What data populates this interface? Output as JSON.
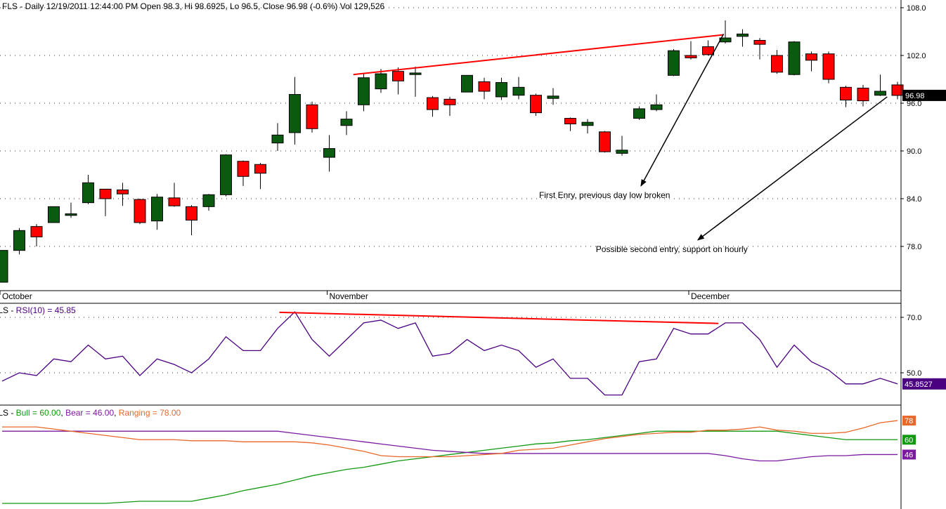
{
  "header": {
    "title": "FLS - Daily 12/19/2011 12:44:00 PM Open 98.3, Hi 98.6925, Lo 96.5, Close 96.98 (-0.6%) Vol 129,526"
  },
  "colors": {
    "up": "#0a5a10",
    "down": "#ff0000",
    "trendline": "#ff0000",
    "rsi": "#4b0082",
    "bull": "#119911",
    "bear": "#7a1aa0",
    "ranging": "#e8682a"
  },
  "chart_data": [
    {
      "type": "candlestick",
      "name": "price",
      "ylim": [
        72,
        109
      ],
      "y_ticks": [
        108.0,
        102.0,
        96.0,
        90.0,
        84.0,
        78.0
      ],
      "y_tick_labels": [
        "108.0",
        "102.0",
        "96.0",
        "90.0",
        "84.0",
        "78.0"
      ],
      "month_labels": [
        {
          "label": "October",
          "index": 0
        },
        {
          "label": "November",
          "index": 19
        },
        {
          "label": "December",
          "index": 40
        }
      ],
      "last_value_label": "96.98",
      "candles": [
        {
          "o": 73.5,
          "h": 77.5,
          "l": 73.5,
          "c": 77.5
        },
        {
          "o": 77.5,
          "h": 80.3,
          "l": 77.0,
          "c": 80.0
        },
        {
          "o": 80.5,
          "h": 80.8,
          "l": 78.0,
          "c": 79.2
        },
        {
          "o": 81.0,
          "h": 83.0,
          "l": 81.0,
          "c": 83.0
        },
        {
          "o": 81.9,
          "h": 83.5,
          "l": 81.6,
          "c": 82.1
        },
        {
          "o": 83.5,
          "h": 87.0,
          "l": 83.3,
          "c": 86.0
        },
        {
          "o": 85.2,
          "h": 85.2,
          "l": 81.8,
          "c": 84.0
        },
        {
          "o": 85.1,
          "h": 86.0,
          "l": 83.1,
          "c": 84.6
        },
        {
          "o": 83.9,
          "h": 84.0,
          "l": 80.8,
          "c": 81.0
        },
        {
          "o": 81.2,
          "h": 84.6,
          "l": 80.1,
          "c": 84.2
        },
        {
          "o": 84.1,
          "h": 86.0,
          "l": 83.0,
          "c": 83.1
        },
        {
          "o": 83.0,
          "h": 83.2,
          "l": 79.4,
          "c": 81.3
        },
        {
          "o": 83.0,
          "h": 84.6,
          "l": 82.5,
          "c": 84.5
        },
        {
          "o": 84.5,
          "h": 89.6,
          "l": 84.3,
          "c": 89.5
        },
        {
          "o": 88.7,
          "h": 88.8,
          "l": 85.6,
          "c": 86.8
        },
        {
          "o": 88.3,
          "h": 88.5,
          "l": 85.2,
          "c": 87.2
        },
        {
          "o": 91.0,
          "h": 93.5,
          "l": 90.0,
          "c": 92.0
        },
        {
          "o": 92.3,
          "h": 99.3,
          "l": 90.8,
          "c": 97.1
        },
        {
          "o": 95.8,
          "h": 96.2,
          "l": 92.3,
          "c": 92.8
        },
        {
          "o": 89.2,
          "h": 92.0,
          "l": 87.4,
          "c": 90.3
        },
        {
          "o": 93.2,
          "h": 95.0,
          "l": 92.0,
          "c": 94.0
        },
        {
          "o": 95.8,
          "h": 99.8,
          "l": 95.0,
          "c": 99.2
        },
        {
          "o": 97.8,
          "h": 100.3,
          "l": 97.3,
          "c": 99.7
        },
        {
          "o": 100.0,
          "h": 100.5,
          "l": 97.1,
          "c": 98.8
        },
        {
          "o": 99.6,
          "h": 100.6,
          "l": 96.8,
          "c": 99.8
        },
        {
          "o": 96.7,
          "h": 96.9,
          "l": 94.3,
          "c": 95.2
        },
        {
          "o": 96.5,
          "h": 96.8,
          "l": 94.4,
          "c": 95.8
        },
        {
          "o": 97.4,
          "h": 99.5,
          "l": 97.4,
          "c": 99.5
        },
        {
          "o": 98.7,
          "h": 99.2,
          "l": 96.5,
          "c": 97.5
        },
        {
          "o": 96.8,
          "h": 99.2,
          "l": 96.4,
          "c": 98.6
        },
        {
          "o": 97.0,
          "h": 99.3,
          "l": 96.5,
          "c": 98.0
        },
        {
          "o": 97.0,
          "h": 97.2,
          "l": 94.4,
          "c": 94.8
        },
        {
          "o": 96.6,
          "h": 97.9,
          "l": 95.8,
          "c": 96.9
        },
        {
          "o": 94.1,
          "h": 94.2,
          "l": 92.5,
          "c": 93.4
        },
        {
          "o": 93.2,
          "h": 94.0,
          "l": 92.2,
          "c": 93.6
        },
        {
          "o": 92.4,
          "h": 92.5,
          "l": 89.8,
          "c": 89.9
        },
        {
          "o": 89.7,
          "h": 91.9,
          "l": 89.4,
          "c": 90.1
        },
        {
          "o": 94.1,
          "h": 95.6,
          "l": 93.9,
          "c": 95.3
        },
        {
          "o": 95.2,
          "h": 97.1,
          "l": 95.0,
          "c": 95.8
        },
        {
          "o": 99.5,
          "h": 102.8,
          "l": 99.4,
          "c": 102.6
        },
        {
          "o": 102.0,
          "h": 103.8,
          "l": 101.5,
          "c": 101.7
        },
        {
          "o": 103.1,
          "h": 103.9,
          "l": 102.0,
          "c": 102.1
        },
        {
          "o": 103.7,
          "h": 106.4,
          "l": 103.5,
          "c": 104.2
        },
        {
          "o": 104.4,
          "h": 105.3,
          "l": 103.1,
          "c": 104.7
        },
        {
          "o": 103.9,
          "h": 104.2,
          "l": 101.5,
          "c": 103.4
        },
        {
          "o": 102.0,
          "h": 102.7,
          "l": 99.7,
          "c": 99.9
        },
        {
          "o": 99.6,
          "h": 103.8,
          "l": 99.5,
          "c": 103.7
        },
        {
          "o": 102.2,
          "h": 102.5,
          "l": 100.0,
          "c": 101.4
        },
        {
          "o": 102.2,
          "h": 102.5,
          "l": 98.5,
          "c": 99.0
        },
        {
          "o": 98.0,
          "h": 98.2,
          "l": 95.5,
          "c": 96.4
        },
        {
          "o": 97.9,
          "h": 98.3,
          "l": 95.6,
          "c": 96.3
        },
        {
          "o": 97.0,
          "h": 99.6,
          "l": 96.9,
          "c": 97.5
        },
        {
          "o": 98.3,
          "h": 98.69,
          "l": 96.5,
          "c": 96.98
        }
      ],
      "trendline": {
        "from": {
          "index": 20.4,
          "value": 99.6
        },
        "to": {
          "index": 41.9,
          "value": 104.6
        }
      }
    },
    {
      "type": "line",
      "name": "rsi",
      "title_prefix": "FLS - ",
      "title_label": "RSI(10) = 45.85",
      "ylim": [
        41,
        72
      ],
      "y_ticks": [
        70.0,
        50.0
      ],
      "y_tick_labels": [
        "70.0",
        "50.0"
      ],
      "last_value_label": "45.8527",
      "values": [
        47,
        50,
        49,
        55,
        54,
        60,
        55,
        56,
        49,
        55,
        53,
        50,
        55,
        63,
        58,
        58,
        66,
        72,
        62,
        56,
        62,
        68,
        69,
        66,
        68,
        56,
        57,
        62,
        58,
        60,
        58,
        52,
        55,
        48,
        48,
        42,
        42,
        54,
        55,
        66,
        64,
        64,
        68,
        68,
        62,
        52,
        60,
        54,
        51,
        46,
        46,
        48,
        46
      ],
      "divergence_line": {
        "from": {
          "index": 16.1,
          "value": 71.8
        },
        "to": {
          "index": 41.6,
          "value": 67.8
        }
      }
    },
    {
      "type": "line",
      "name": "bull-bear-ranging",
      "title_prefix": "FLS - ",
      "title_series": [
        {
          "label": "Bull = 60.00",
          "color_key": "bull"
        },
        {
          "label": "Bear = 46.00",
          "color_key": "bear"
        },
        {
          "label": "Ranging = 78.00",
          "color_key": "ranging"
        }
      ],
      "separators": [
        ", ",
        ", "
      ],
      "ylim": [
        0,
        84
      ],
      "series": [
        {
          "name": "Bull",
          "color_key": "bull",
          "last_label": "60",
          "values": [
            0,
            0,
            0,
            0,
            0,
            0,
            0,
            1,
            2,
            2,
            2,
            2,
            5,
            8,
            12,
            15,
            18,
            22,
            26,
            29,
            32,
            34,
            37,
            40,
            42,
            44,
            46,
            48,
            50,
            52,
            54,
            56,
            57,
            59,
            60,
            62,
            64,
            66,
            68,
            68,
            68,
            68,
            68,
            68,
            68,
            68,
            66,
            64,
            62,
            60,
            60,
            60,
            60
          ]
        },
        {
          "name": "Bear",
          "color_key": "bear",
          "last_label": "46",
          "values": [
            68,
            68,
            68,
            68,
            68,
            68,
            68,
            68,
            68,
            68,
            68,
            68,
            68,
            68,
            68,
            68,
            68,
            66,
            64,
            62,
            60,
            58,
            56,
            54,
            52,
            50,
            49,
            48,
            47,
            47,
            47,
            47,
            47,
            47,
            47,
            47,
            47,
            47,
            47,
            47,
            47,
            47,
            45,
            42,
            40,
            40,
            42,
            44,
            45,
            45,
            46,
            46,
            46
          ]
        },
        {
          "name": "Ranging",
          "color_key": "ranging",
          "last_label": "78",
          "values": [
            72,
            72,
            72,
            70,
            68,
            66,
            64,
            62,
            60,
            60,
            60,
            59,
            59,
            59,
            58,
            58,
            58,
            58,
            57,
            55,
            52,
            49,
            45,
            44,
            44,
            44,
            44,
            45,
            46,
            47,
            50,
            51,
            52,
            55,
            58,
            61,
            63,
            65,
            66,
            67,
            67,
            69,
            69,
            70,
            72,
            69,
            68,
            66,
            66,
            67,
            71,
            76,
            78
          ]
        }
      ]
    }
  ],
  "annotations": [
    {
      "text": "First Enry, previous day low broken",
      "from_index": 41.9,
      "from_value": 104.7,
      "to_index": 37.1,
      "to_value": 85.6
    },
    {
      "text": "Possible second entry, support on hourly",
      "from_index": 51.4,
      "from_value": 96.8,
      "to_index": 40.4,
      "to_value": 78.8
    }
  ]
}
